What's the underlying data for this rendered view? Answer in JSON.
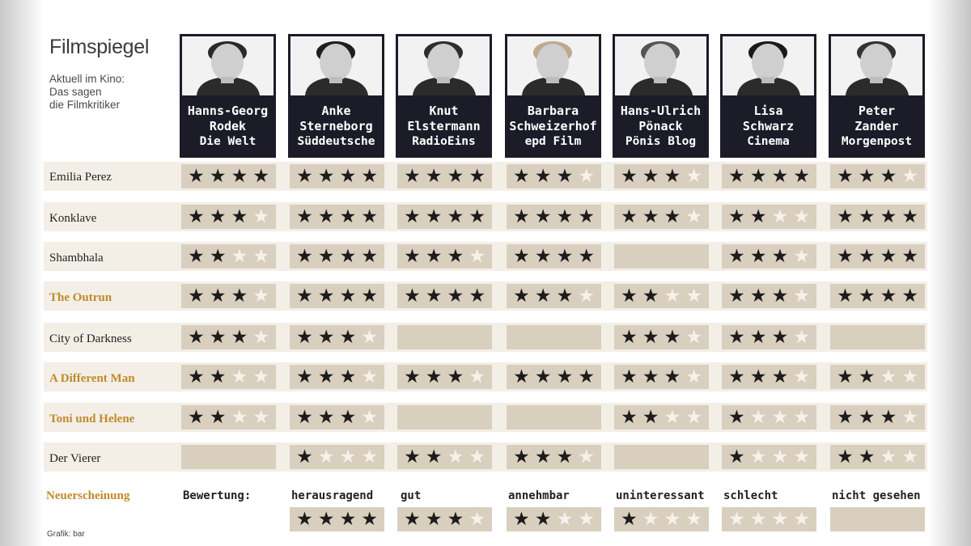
{
  "title": "Filmspiegel",
  "subtitle": [
    "Aktuell im Kino:",
    "Das sagen",
    "die Filmkritiker"
  ],
  "critics": [
    {
      "name": [
        "Hanns-Georg",
        "Rodek"
      ],
      "outlet": "Die Welt"
    },
    {
      "name": [
        "Anke",
        "Sterneborg"
      ],
      "outlet": "Süddeutsche"
    },
    {
      "name": [
        "Knut",
        "Elstermann"
      ],
      "outlet": "RadioEins"
    },
    {
      "name": [
        "Barbara",
        "Schweizerhof"
      ],
      "outlet": "epd Film"
    },
    {
      "name": [
        "Hans-Ulrich",
        "Pönack"
      ],
      "outlet": "Pönis Blog"
    },
    {
      "name": [
        "Lisa",
        "Schwarz"
      ],
      "outlet": "Cinema"
    },
    {
      "name": [
        "Peter",
        "Zander"
      ],
      "outlet": "Morgenpost"
    }
  ],
  "films": [
    {
      "title": "Emilia Perez",
      "new": false,
      "ratings": [
        4,
        4,
        4,
        3,
        3,
        4,
        3
      ]
    },
    {
      "title": "Konklave",
      "new": false,
      "ratings": [
        3,
        4,
        4,
        4,
        3,
        2,
        4
      ]
    },
    {
      "title": "Shambhala",
      "new": false,
      "ratings": [
        2,
        4,
        3,
        4,
        null,
        3,
        4
      ]
    },
    {
      "title": "The Outrun",
      "new": true,
      "ratings": [
        3,
        4,
        4,
        3,
        2,
        3,
        4
      ]
    },
    {
      "title": "City of Darkness",
      "new": false,
      "ratings": [
        3,
        3,
        null,
        null,
        3,
        3,
        null
      ]
    },
    {
      "title": "A Different Man",
      "new": true,
      "ratings": [
        2,
        3,
        3,
        4,
        3,
        3,
        2
      ]
    },
    {
      "title": "Toni und Helene",
      "new": true,
      "ratings": [
        2,
        3,
        null,
        null,
        2,
        1,
        3
      ]
    },
    {
      "title": "Der Vierer",
      "new": false,
      "ratings": [
        null,
        1,
        2,
        3,
        null,
        1,
        2
      ]
    }
  ],
  "legend": {
    "new_label": "Neuerscheinung",
    "rating_label": "Bewertung:",
    "levels": [
      {
        "label": "herausragend",
        "stars": 4
      },
      {
        "label": "gut",
        "stars": 3
      },
      {
        "label": "annehmbar",
        "stars": 2
      },
      {
        "label": "uninteressant",
        "stars": 1
      },
      {
        "label": "schlecht",
        "stars": 0
      },
      {
        "label": "nicht gesehen",
        "stars": null
      }
    ]
  },
  "credit": "Grafik: bar",
  "colors": {
    "critic_box": "#1c1c28",
    "cell": "#d8cfbf",
    "row_band": "#f3efe7",
    "new_film": "#c08a2c",
    "star_on": "#1c1c1c",
    "star_off": "#f6f2ea"
  },
  "icons": {
    "star": "★",
    "critic_photo": "portrait-photo"
  }
}
